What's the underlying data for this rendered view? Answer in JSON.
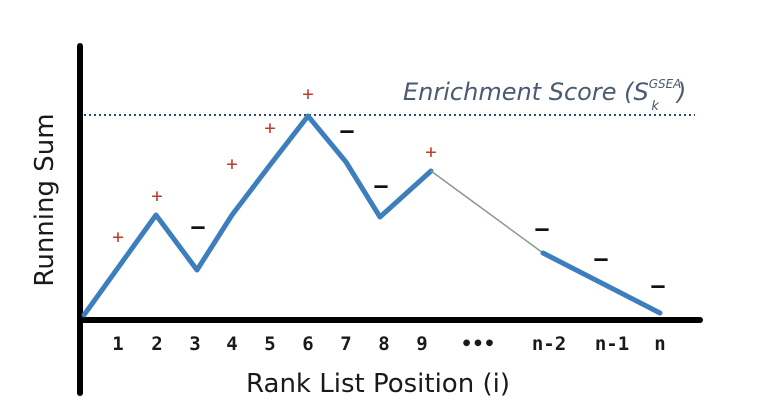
{
  "diagram": {
    "y_axis_title": "Running Sum",
    "x_axis_title": "Rank List Position (i)",
    "es_label": {
      "main": "Enrichment Score (S",
      "sub": "k",
      "sup": "GSEA",
      "close": ")"
    },
    "tick_labels": [
      "1",
      "2",
      "3",
      "4",
      "5",
      "6",
      "7",
      "8",
      "9",
      "•••",
      "n-2",
      "n-1",
      "n"
    ],
    "signs": [
      "+",
      "+",
      "–",
      "+",
      "+",
      "+",
      "–",
      "–",
      "+",
      "–",
      "–",
      "–"
    ],
    "line_color": "#3d7ebf",
    "gap_line_color": "#8a9a8a",
    "plus_color": "#c0392b",
    "minus_color": "#111111",
    "threshold_line_color": "#2c4a6a"
  }
}
